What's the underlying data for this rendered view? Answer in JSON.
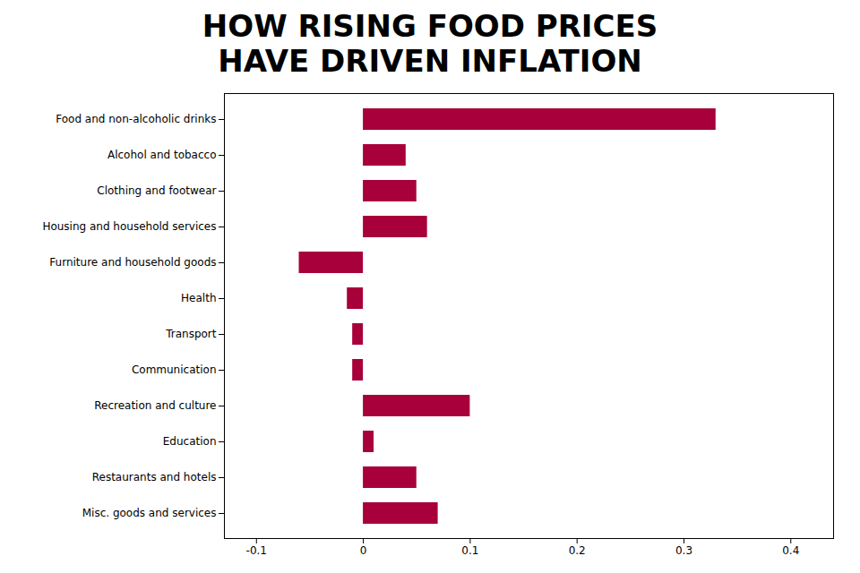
{
  "chart_data": {
    "type": "bar",
    "orientation": "horizontal",
    "title": "HOW RISING FOOD PRICES\nHAVE DRIVEN INFLATION",
    "categories": [
      "Food and non-alcoholic drinks",
      "Alcohol and tobacco",
      "Clothing and footwear",
      "Housing and household services",
      "Furniture and household goods",
      "Health",
      "Transport",
      "Communication",
      "Recreation and culture",
      "Education",
      "Restaurants and hotels",
      "Misc. goods and services"
    ],
    "values": [
      0.33,
      0.04,
      0.05,
      0.06,
      -0.06,
      -0.015,
      -0.01,
      -0.01,
      0.1,
      0.01,
      0.05,
      0.07
    ],
    "color": "#A8003B",
    "xlim": [
      -0.13,
      0.44
    ],
    "xticks": [
      -0.1,
      0,
      0.1,
      0.2,
      0.3,
      0.4
    ]
  }
}
